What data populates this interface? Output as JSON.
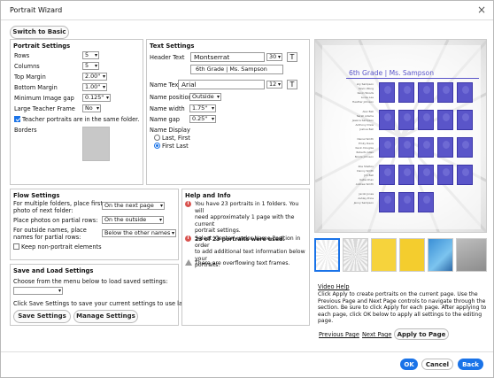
{
  "window": {
    "title": "Portrait Wizard",
    "close": "×"
  },
  "switch_basic": "Switch to Basic",
  "portrait_settings": {
    "header": "Portrait Settings",
    "rows_label": "Rows",
    "rows_value": "5",
    "columns_label": "Columns",
    "columns_value": "5",
    "top_margin_label": "Top Margin",
    "top_margin_value": "2.00\"",
    "bottom_margin_label": "Bottom Margin",
    "bottom_margin_value": "1.00\"",
    "min_gap_label": "Minimum Image gap",
    "min_gap_value": "0.125\"",
    "large_frame_label": "Large Teacher Frame",
    "large_frame_value": "No",
    "same_folder_label": "Teacher portraits are in the same folder.",
    "borders_label": "Borders"
  },
  "text_settings": {
    "header": "Text Settings",
    "header_text_label": "Header Text",
    "header_font": "Montserrat",
    "header_size": "30",
    "header_preview": "6th Grade  |  Ms. Sampson",
    "name_text_label": "Name Text",
    "name_font": "Arial",
    "name_size": "12",
    "name_position_label": "Name position",
    "name_position_value": "Outside",
    "name_width_label": "Name width",
    "name_width_value": "1.75\"",
    "name_gap_label": "Name gap",
    "name_gap_value": "0.25\"",
    "name_display_label": "Name Display",
    "last_first": "Last, First",
    "first_last": "First Last",
    "t_button": "T"
  },
  "flow_settings": {
    "header": "Flow Settings",
    "multi_label_1": "For multiple folders, place first",
    "multi_label_2": "photo of next folder:",
    "multi_value": "On the next page",
    "partial_label": "Place photos on partial rows:",
    "partial_value": "On the outside",
    "outside_label_1": "For outside names, place",
    "outside_label_2": "names for partial rows:",
    "outside_value": "Below the other names",
    "keep_label": "Keep non-portrait elements"
  },
  "save_load": {
    "header": "Save and Load Settings",
    "choose_label": "Choose from the menu below to load saved settings:",
    "click_label": "Click Save Settings to save your current settings to use later.",
    "save_btn": "Save Settings",
    "manage_btn": "Manage Settings"
  },
  "help": {
    "header": "Help and Info",
    "info1_l1": "You have 23 portraits in 1 folders. You will",
    "info1_l2": "need approximately 1 page with the current",
    "info1_l3": "portrait settings.",
    "info1_bold": "23 of 23 portraits were used.",
    "info2_l1": "Select 'Center' under Name Position in order",
    "info2_l2": "to add additional text information below your",
    "info2_l3": "portraits.",
    "info3": "There are overflowing text frames."
  },
  "preview": {
    "title": "6th Grade | Ms. Sampson",
    "names": [
      "Lily Sampson",
      "Kevin Wong",
      "Kevin Woods",
      "Lucas Lee",
      "Heather Johnson",
      "Alex Bell",
      "Sarah Adams",
      "Jessica Sampson",
      "Anthony Drew",
      "Joshua Bell",
      "Daniel Smith",
      "Emily Davis",
      "Kevin Douglas",
      "Roberto Allen",
      "Nicole Johnson",
      "Zoe Shelton",
      "Danny Smith",
      "Jim Bell",
      "Katie Chan",
      "Andrew Smith",
      "Jacob Jones",
      "Ashley Price",
      "Jenny Sampson"
    ]
  },
  "video_help": "Video Help",
  "help_text": "Click Apply to create portraits on the current page. Use the Previous Page and Next Page controls to navigate through the section. Be sure to click Apply for each page. After applying to each page, click OK below to apply all settings to the editing page.",
  "nav": {
    "prev": "Previous Page",
    "next": "Next Page",
    "apply": "Apply to Page"
  },
  "footer": {
    "ok": "OK",
    "cancel": "Cancel",
    "back": "Back"
  },
  "colors": {
    "accent": "#1a73e8",
    "portrait": "#5a55c9",
    "swatch_yellow": "#f6d33c"
  }
}
